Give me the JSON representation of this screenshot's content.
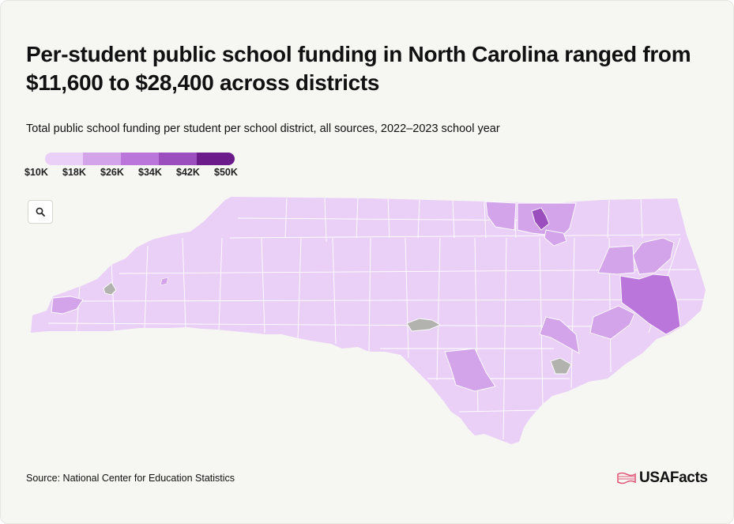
{
  "header": {
    "title": "Per-student public school funding in North Carolina ranged from $11,600 to $28,400 across districts",
    "subtitle": "Total public school funding per student per school district, all sources, 2022–2023 school year"
  },
  "legend": {
    "labels": [
      "$10K",
      "$18K",
      "$26K",
      "$34K",
      "$42K",
      "$50K"
    ],
    "colors": [
      "#ead0f7",
      "#d3a4ea",
      "#bb76db",
      "#9b4fbf",
      "#6b1c8a"
    ]
  },
  "map": {
    "state": "North Carolina",
    "base_color": "#ead0f7",
    "no_data_color": "#b2b2ae",
    "zoom_icon": "search-icon"
  },
  "footer": {
    "source": "Source: National Center for Education Statistics",
    "logo_text": "USAFacts",
    "logo_icon": "usafacts-flag-icon",
    "logo_color": "#e0587a"
  }
}
